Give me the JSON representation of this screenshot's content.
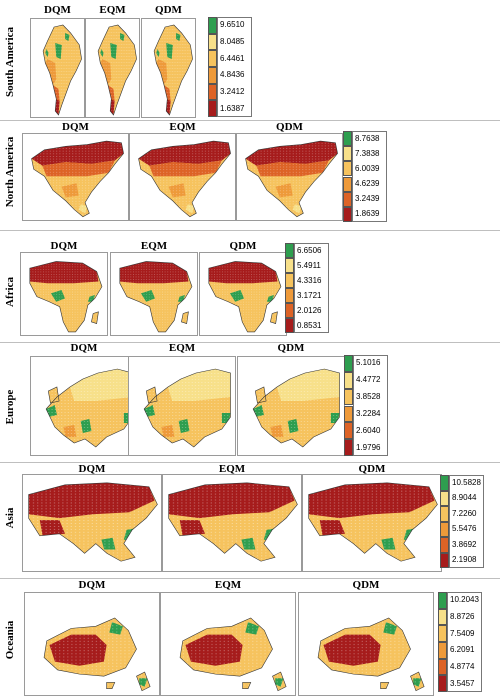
{
  "methods": [
    "DQM",
    "EQM",
    "QDM"
  ],
  "colors": [
    "#2e9e4f",
    "#f7e08a",
    "#f6c35e",
    "#ee9a3a",
    "#dd6326",
    "#a61c1c"
  ],
  "panels": [
    {
      "id": "south-america",
      "region": "South America",
      "map": "south-america",
      "legend_values": [
        "9.6510",
        "8.0485",
        "6.4461",
        "4.8436",
        "3.2412",
        "1.6387"
      ]
    },
    {
      "id": "north-america",
      "region": "North America",
      "map": "north-america",
      "legend_values": [
        "8.7638",
        "7.3838",
        "6.0039",
        "4.6239",
        "3.2439",
        "1.8639"
      ]
    },
    {
      "id": "africa",
      "region": "Africa",
      "map": "africa",
      "legend_values": [
        "6.6506",
        "5.4911",
        "4.3316",
        "3.1721",
        "2.0126",
        "0.8531"
      ]
    },
    {
      "id": "europe",
      "region": "Europe",
      "map": "europe",
      "legend_values": [
        "5.1016",
        "4.4772",
        "3.8528",
        "3.2284",
        "2.6040",
        "1.9796"
      ]
    },
    {
      "id": "asia",
      "region": "Asia",
      "map": "asia",
      "legend_values": [
        "10.5828",
        "8.9044",
        "7.2260",
        "5.5476",
        "3.8692",
        "2.1908"
      ]
    },
    {
      "id": "oceania",
      "region": "Oceania",
      "map": "oceania",
      "legend_values": [
        "10.2043",
        "8.8726",
        "7.5409",
        "6.2091",
        "4.8774",
        "3.5457"
      ]
    }
  ]
}
